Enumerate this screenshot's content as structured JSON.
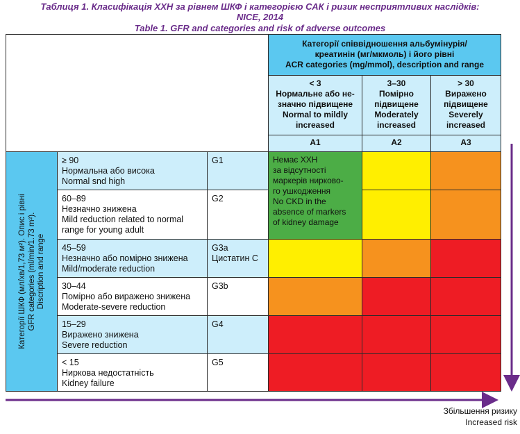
{
  "title": {
    "line1": "Таблиця 1. Класифікація ХХН за рівнем ШКФ і категорією САК і ризик несприятливих наслідків:",
    "line2": "NICE, 2014",
    "line3": "Table 1. GFR and categories and risk of adverse outcomes"
  },
  "acr_header": {
    "line1": "Категорії співвідношення альбумінурія/",
    "line2": "креатинін (мг/мкмоль) і його рівні",
    "line3": "ACR categories (mg/mmol), description and range"
  },
  "acr_columns": [
    {
      "range": "< 3",
      "line1": "Нормальне або не-",
      "line2": "значно підвищене",
      "line3": "Normal to mildly",
      "line4": "increased",
      "code": "A1"
    },
    {
      "range": "3–30",
      "line1": "Помірно",
      "line2": "підвищене",
      "line3": "Moderately",
      "line4": "increased",
      "code": "A2"
    },
    {
      "range": "> 30",
      "line1": "Виражено",
      "line2": "підвищене",
      "line3": "Severely",
      "line4": "increased",
      "code": "A3"
    }
  ],
  "gfr_axis_label": {
    "line1": "Категорії ШКФ (мл/хв/1,73 м²). Опис і рівні",
    "line2": "GFR categories (ml/min/1.73 m²).",
    "line3": "Discription and range"
  },
  "gfr_rows": [
    {
      "l1": "≥ 90",
      "l2": "Нормальна або висока",
      "l3": "Normal snd high",
      "l4": "",
      "g1": "G1",
      "g2": ""
    },
    {
      "l1": "60–89",
      "l2": "Незначно знижена",
      "l3": "Mild reduction related to normal",
      "l4": "range for young adult",
      "g1": "G2",
      "g2": ""
    },
    {
      "l1": "45–59",
      "l2": "Незначно або помірно знижена",
      "l3": "Mild/moderate reduction",
      "l4": "",
      "g1": "G3a",
      "g2": "Цистатин С"
    },
    {
      "l1": "30–44",
      "l2": "Помірно або виражено знижена",
      "l3": "Moderate-severe reduction",
      "l4": "",
      "g1": "G3b",
      "g2": ""
    },
    {
      "l1": "15–29",
      "l2": "Виражено знижена",
      "l3": "Severe reduction",
      "l4": "",
      "g1": "G4",
      "g2": ""
    },
    {
      "l1": "< 15",
      "l2": "Ниркова недостатність",
      "l3": "Kidney failure",
      "l4": "",
      "g1": "G5",
      "g2": ""
    }
  ],
  "no_ckd": {
    "l1": "Немає ХХН",
    "l2": "за відсутності",
    "l3": "маркерів нирково-",
    "l4": "го ушкодження",
    "l5": "No CKD in the",
    "l6": "absence of markers",
    "l7": "of kidney damage"
  },
  "risk_label": {
    "line1": "Збільшення ризику",
    "line2": "Increased risk"
  },
  "colors": {
    "green": "#4cad46",
    "yellow": "#ffef00",
    "orange": "#f6921e",
    "red": "#ee1c24",
    "header_blue": "#5bc8f0",
    "light_blue": "#cdeefb",
    "title_purple": "#6a2c8a"
  }
}
